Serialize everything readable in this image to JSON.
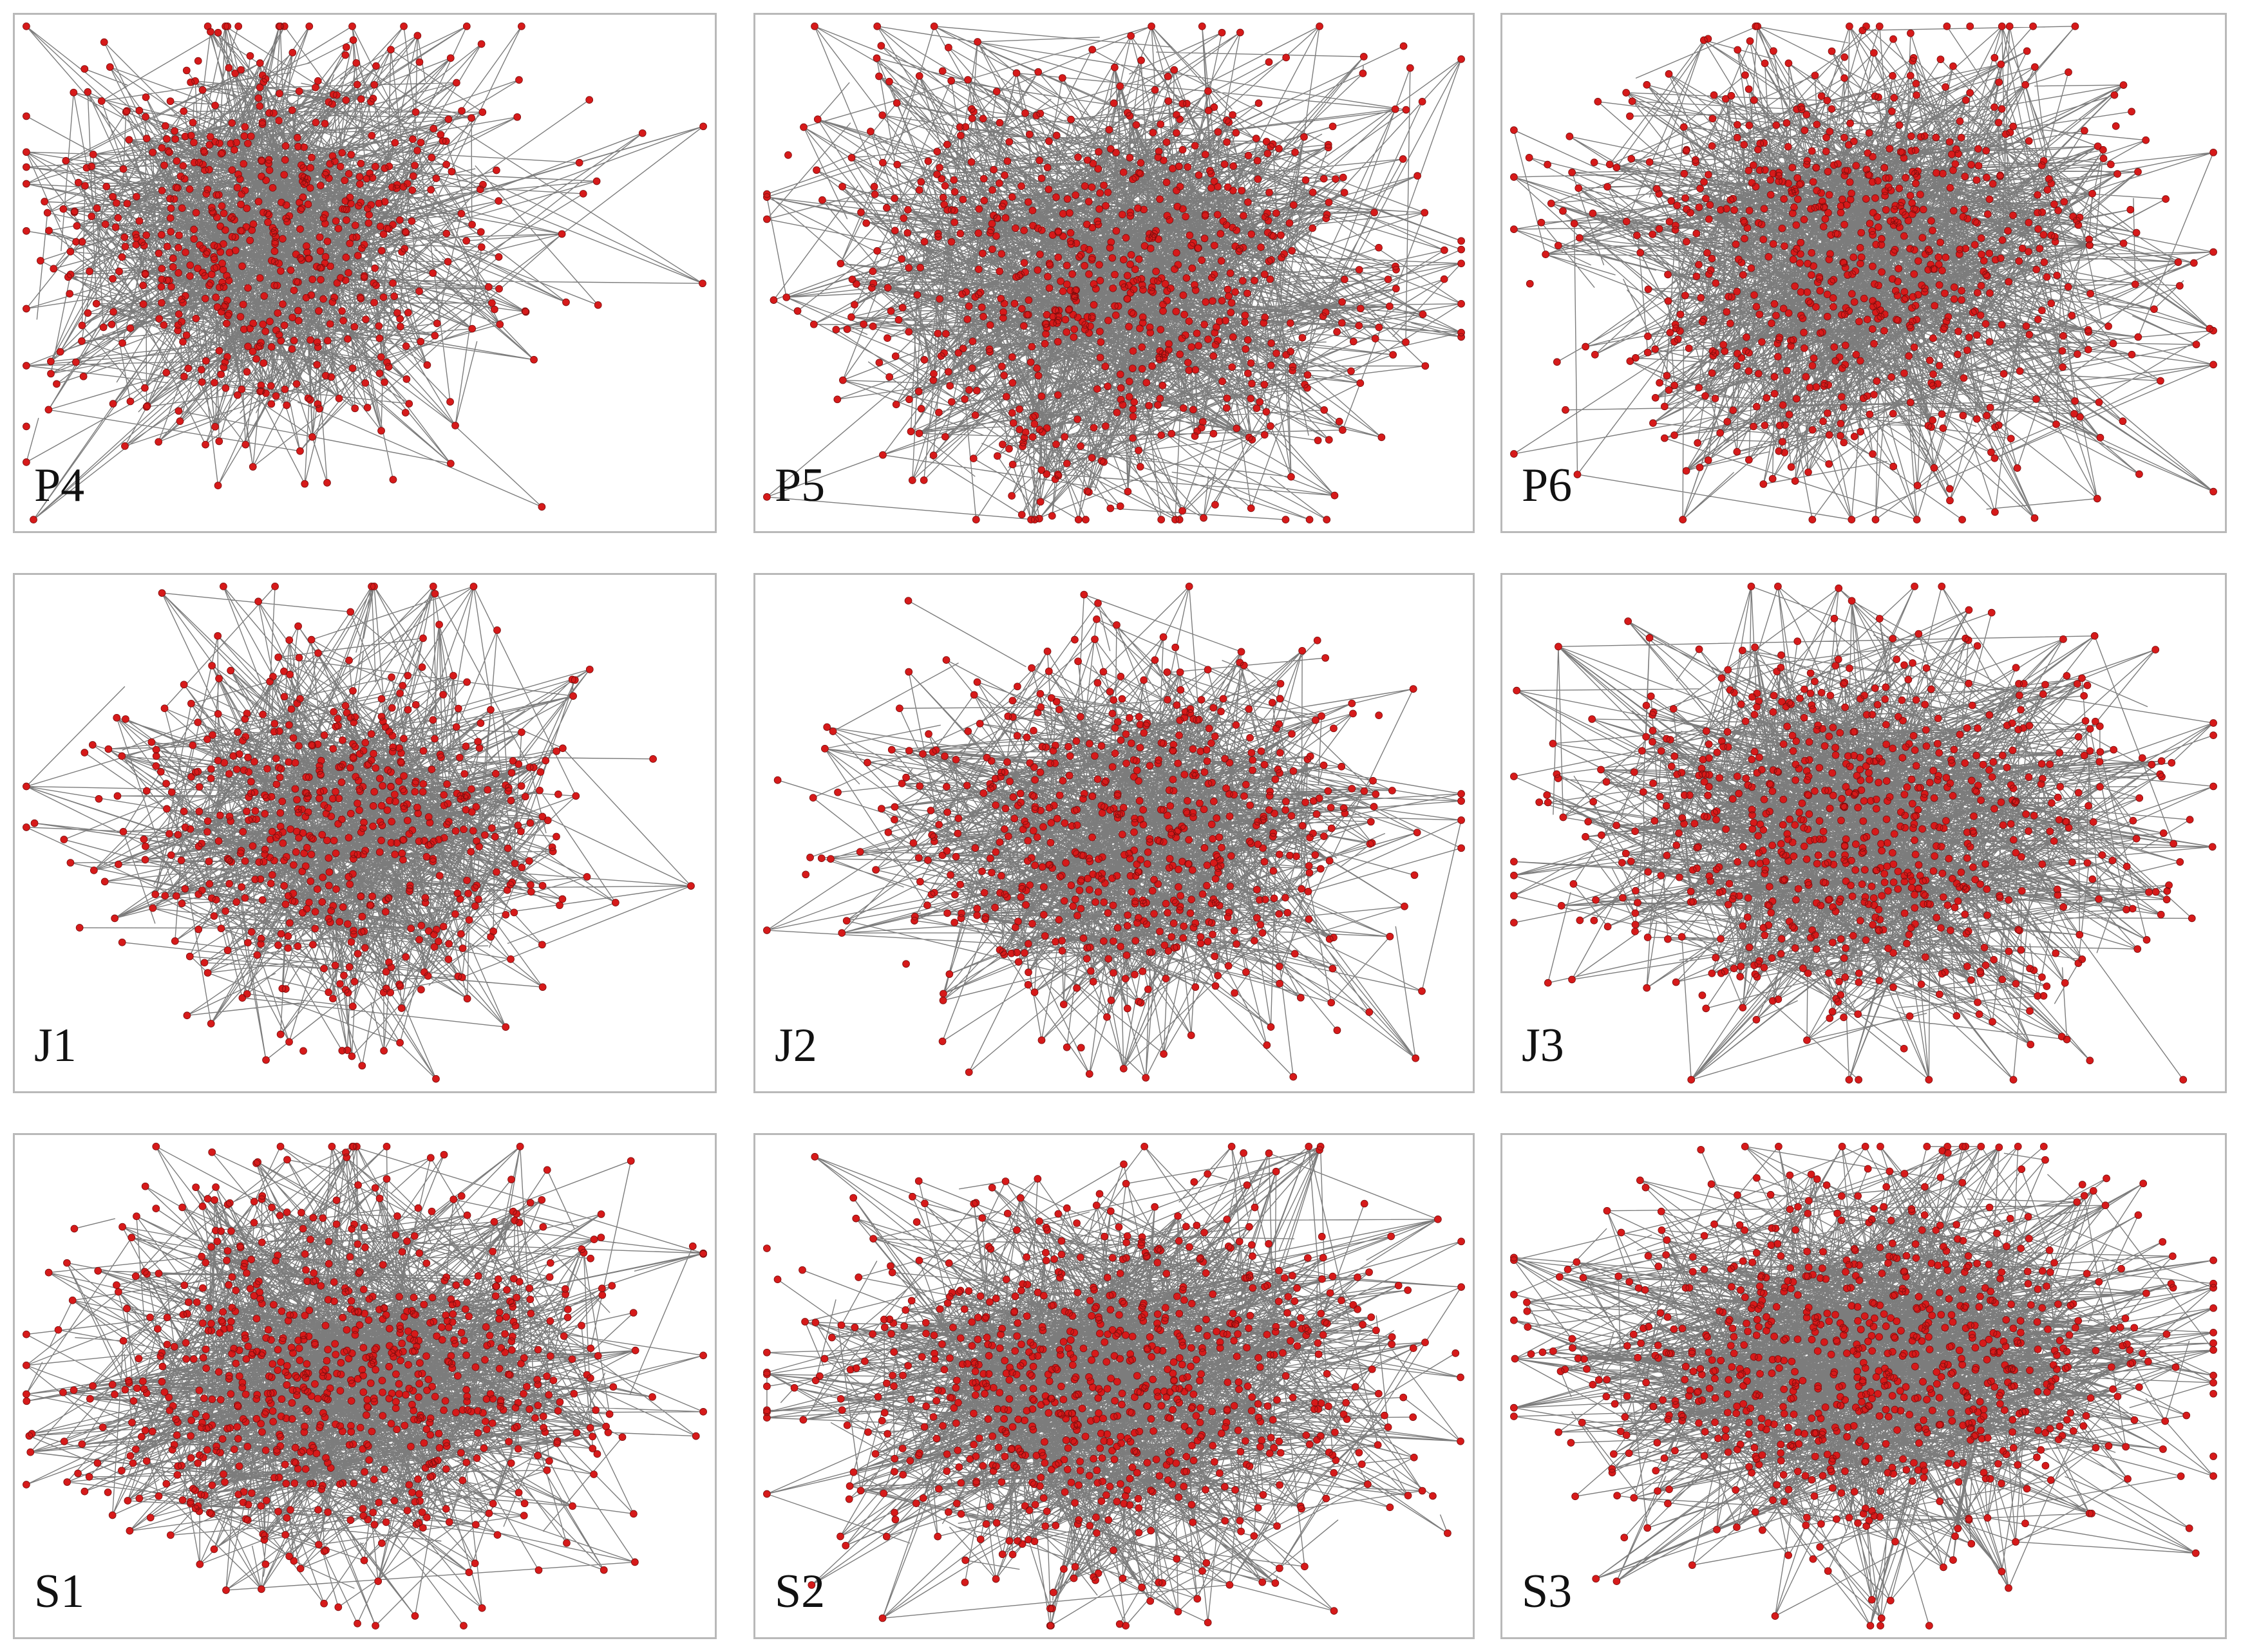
{
  "panels": [
    {
      "label": "P4"
    },
    {
      "label": "P5"
    },
    {
      "label": "P6"
    },
    {
      "label": "J1"
    },
    {
      "label": "J2"
    },
    {
      "label": "J3"
    },
    {
      "label": "S1"
    },
    {
      "label": "S2"
    },
    {
      "label": "S3"
    }
  ],
  "colors": {
    "node": "#d61a1a",
    "edge": "#111111",
    "border": "#b9b9b9",
    "background": "#ffffff"
  }
}
